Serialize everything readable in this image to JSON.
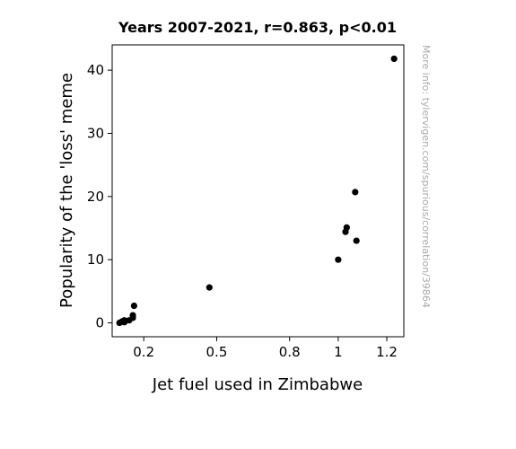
{
  "chart_data": {
    "type": "scatter",
    "title": "Years 2007-2021, r=0.863, p<0.01",
    "xlabel": "Jet fuel used in Zimbabwe",
    "ylabel": "Popularity of the 'loss' meme",
    "xlim": [
      0.07,
      1.27
    ],
    "ylim": [
      -2.2,
      44.0
    ],
    "x_ticks": [
      {
        "value": 0.2,
        "label": "0.2"
      },
      {
        "value": 0.5,
        "label": "0.5"
      },
      {
        "value": 0.8,
        "label": "0.8"
      },
      {
        "value": 1.0,
        "label": "1"
      },
      {
        "value": 1.2,
        "label": "1.2"
      }
    ],
    "y_ticks": [
      {
        "value": 0,
        "label": "0"
      },
      {
        "value": 10,
        "label": "10"
      },
      {
        "value": 20,
        "label": "20"
      },
      {
        "value": 30,
        "label": "30"
      },
      {
        "value": 40,
        "label": "40"
      }
    ],
    "points": [
      {
        "x": 0.1,
        "y": 0.0
      },
      {
        "x": 0.11,
        "y": 0.2
      },
      {
        "x": 0.12,
        "y": 0.4
      },
      {
        "x": 0.12,
        "y": 0.1
      },
      {
        "x": 0.14,
        "y": 0.4
      },
      {
        "x": 0.155,
        "y": 0.8
      },
      {
        "x": 0.155,
        "y": 1.2
      },
      {
        "x": 0.16,
        "y": 2.7
      },
      {
        "x": 0.47,
        "y": 5.6
      },
      {
        "x": 1.0,
        "y": 10.0
      },
      {
        "x": 1.03,
        "y": 14.4
      },
      {
        "x": 1.035,
        "y": 15.1
      },
      {
        "x": 1.07,
        "y": 20.7
      },
      {
        "x": 1.075,
        "y": 13.0
      },
      {
        "x": 1.23,
        "y": 41.8
      }
    ],
    "grid": false,
    "marker_color": "#000000"
  },
  "watermark": "More info: tylervigen.com/spurious/correlation/39864"
}
